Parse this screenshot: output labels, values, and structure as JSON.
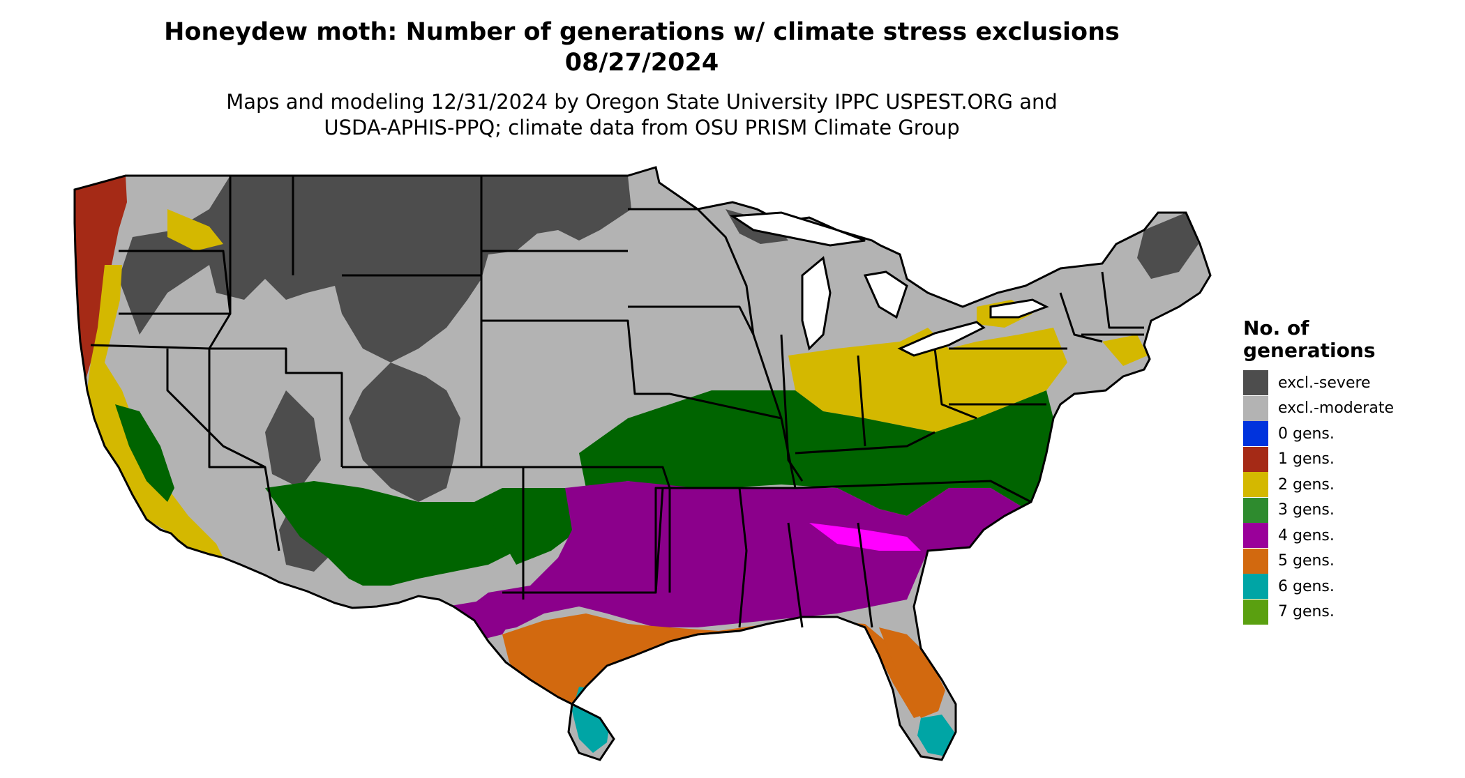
{
  "title_line1": "Honeydew moth: Number of generations w/ climate stress exclusions",
  "title_line2": "08/27/2024",
  "subtitle_line1": "Maps and modeling 12/31/2024 by Oregon State University IPPC USPEST.ORG and",
  "subtitle_line2": "USDA-APHIS-PPQ; climate data from OSU PRISM Climate Group",
  "legend": {
    "title_line1": "No. of",
    "title_line2": "generations",
    "items": [
      {
        "label": "excl.-severe",
        "color": "#4d4d4d"
      },
      {
        "label": "excl.-moderate",
        "color": "#b3b3b3"
      },
      {
        "label": "0 gens.",
        "color": "#0033dd"
      },
      {
        "label": "1 gens.",
        "color": "#a52a16"
      },
      {
        "label": "2 gens.",
        "color": "#d4b800"
      },
      {
        "label": "3 gens.",
        "color": "#2e8b2e"
      },
      {
        "label": "4 gens.",
        "color": "#9a009a"
      },
      {
        "label": "5 gens.",
        "color": "#d2690f"
      },
      {
        "label": "6 gens.",
        "color": "#00a5a5"
      },
      {
        "label": "7 gens.",
        "color": "#5aa010"
      }
    ]
  },
  "map_colors": {
    "excl_severe": "#4d4d4d",
    "excl_moderate": "#b3b3b3",
    "gens_1": "#a52a16",
    "gens_2": "#d4b800",
    "gens_3": "#006400",
    "gens_3_light": "#90ee90",
    "gens_4": "#8b008b",
    "gens_4_light": "#ff00ff",
    "gens_5": "#d2690f",
    "gens_5_light": "#f4a040",
    "gens_6": "#00a5a5",
    "gens_6_light": "#00e5e5",
    "gens_7": "#7ccc00"
  }
}
